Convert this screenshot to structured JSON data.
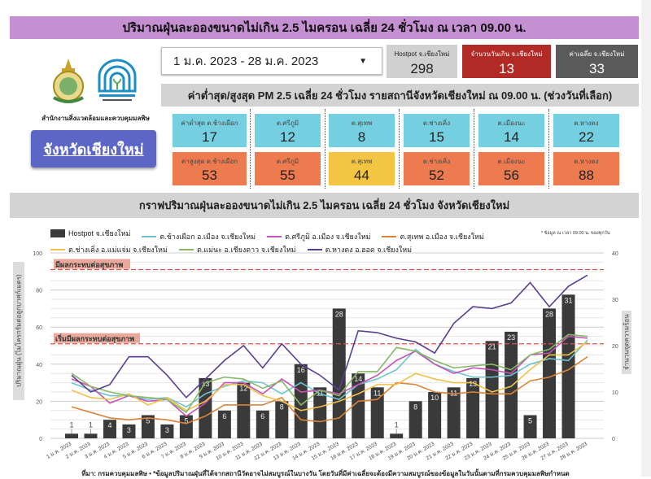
{
  "banner": {
    "title": "ปริมาณฝุ่นละอองขนาดไม่เกิน 2.5 ไมครอน เฉลี่ย 24 ชั่วโมง ณ เวลา 09.00 น."
  },
  "left": {
    "logos": [
      "provincial-seal-logo",
      "pollution-control-department-logo"
    ],
    "org": "สำนักงานสิ่งแวดล้อมและควบคุมมลพิษ",
    "province_button": "จังหวัดเชียงใหม่"
  },
  "date_range": {
    "value": "1 ม.ค. 2023 - 28 ม.ค. 2023",
    "icon": "caret-down-icon"
  },
  "stats": [
    {
      "label": "Hostpot จ.เชียงใหม่",
      "value": "298",
      "color": "#d0d0d0",
      "text": "#222"
    },
    {
      "label": "จำนวนวันเกิน จ.เชียงใหม่",
      "value": "13",
      "color": "#b22a25",
      "text": "#fff"
    },
    {
      "label": "ค่าเฉลี่ย จ.เชียงใหม่",
      "value": "33",
      "color": "#5a5a5a",
      "text": "#fff"
    }
  ],
  "stations_header": "ค่าต่ำสุด/สูงสุด PM 2.5 เฉลี่ย 24 ชั่วโมง รายสถานีจังหวัดเชียงใหม่ ณ 09.00 น. (ช่วงวันที่เลือก)",
  "min_cards": [
    {
      "label": "ค่าต่ำสุด ต.ช้างเผือก",
      "value": "17"
    },
    {
      "label": "ต.ศรีภูมิ",
      "value": "12"
    },
    {
      "label": "ต.สุเทพ",
      "value": "8"
    },
    {
      "label": "ต.ช่างเคิ่ง",
      "value": "15"
    },
    {
      "label": "ต.เมืองนะ",
      "value": "14"
    },
    {
      "label": "ต.หางดง",
      "value": "22"
    }
  ],
  "max_cards": [
    {
      "label": "ค่าสูงสุด ต.ช้างเผือก",
      "value": "53",
      "color": "#ee7b4f"
    },
    {
      "label": "ต.ศรีภูมิ",
      "value": "55",
      "color": "#ee7b4f"
    },
    {
      "label": "ต.สุเทพ",
      "value": "44",
      "color": "#f4c542"
    },
    {
      "label": "ต.ช่างเคิ่ง",
      "value": "52",
      "color": "#ee7b4f"
    },
    {
      "label": "ต.เมืองนะ",
      "value": "56",
      "color": "#ee7b4f"
    },
    {
      "label": "ต.หางดง",
      "value": "88",
      "color": "#ee7b4f"
    }
  ],
  "colors": {
    "min_card": "#74cfe0"
  },
  "chart_header": "กราฟปริมาณฝุ่นละอองขนาดไม่เกิน 2.5 ไมครอน เฉลี่ย 24 ชั่วโมง จังหวัดเชียงใหม่",
  "chart_note": "* ข้อมูล ณ เวลา 09.00 น. ของทุกวัน",
  "footer": "ที่มา: กรมควบคุมมลพิษ • *ข้อมูลปริมาณฝุ่นที่ได้จากสถานีวัดอาจไม่สมบูรณ์ในบางวัน โดยวันที่มีค่าเฉลี่ยจะต้องมีความสมบูรณ์ของข้อมูลในวันนั้นตามที่กรมควบคุมมลพิษกำหนด",
  "chart_data": {
    "type": "bar+line",
    "ylabel": "ปริมาณฝุ่น (ไมโครกรัมต่อลูกบาศก์เมตร)",
    "y2label": "จำนวนจุดความร้อน",
    "ylim": [
      0,
      100
    ],
    "y2lim": [
      0,
      40
    ],
    "yticks": [
      0,
      20,
      40,
      60,
      80,
      100
    ],
    "y2ticks": [
      0,
      10,
      20,
      30,
      40
    ],
    "grid": true,
    "legend": "top",
    "categories": [
      "1 ม.ค. 2023",
      "2 ม.ค. 2023",
      "3 ม.ค. 2023",
      "4 ม.ค. 2023",
      "5 ม.ค. 2023",
      "6 ม.ค. 2023",
      "7 ม.ค. 2023",
      "8 ม.ค. 2023",
      "9 ม.ค. 2023",
      "10 ม.ค. 2023",
      "11 ม.ค. 2023",
      "12 ม.ค. 2023",
      "13 ม.ค. 2023",
      "14 ม.ค. 2023",
      "15 ม.ค. 2023",
      "16 ม.ค. 2023",
      "17 ม.ค. 2023",
      "18 ม.ค. 2023",
      "19 ม.ค. 2023",
      "20 ม.ค. 2023",
      "21 ม.ค. 2023",
      "22 ม.ค. 2023",
      "23 ม.ค. 2023",
      "24 ม.ค. 2023",
      "25 ม.ค. 2023",
      "26 ม.ค. 2023",
      "27 ม.ค. 2023",
      "28 ม.ค. 2023"
    ],
    "thresholds": [
      {
        "label": "มีผลกระทบต่อสุขภาพ",
        "value": 91
      },
      {
        "label": "เริ่มมีผลกระทบต่อสุขภาพ",
        "value": 51
      }
    ],
    "bars": {
      "name": "Hostpot จ.เชียงใหม่",
      "color": "#3a3a3a",
      "axis": "right",
      "values": [
        1,
        1,
        4,
        3,
        5,
        3,
        5,
        13,
        6,
        12,
        6,
        8,
        16,
        11,
        28,
        14,
        11,
        1,
        8,
        10,
        11,
        13,
        21,
        23,
        5,
        28,
        31,
        null
      ]
    },
    "series": [
      {
        "name": "ต.ช้างเผือก อ.เมือง จ.เชียงใหม่",
        "color": "#6cc4d2",
        "values": [
          30,
          26,
          23,
          23,
          21,
          22,
          17,
          24,
          28,
          31,
          30,
          24,
          30,
          24,
          21,
          29,
          32,
          37,
          48,
          40,
          36,
          33,
          33,
          34,
          40,
          43,
          42,
          53
        ]
      },
      {
        "name": "ต.ศรีภูมิ อ.เมือง จ.เชียงใหม่",
        "color": "#c553b5",
        "values": [
          32,
          28,
          19,
          23,
          20,
          21,
          12,
          19,
          30,
          30,
          24,
          32,
          25,
          26,
          24,
          29,
          34,
          42,
          47,
          40,
          35,
          38,
          37,
          35,
          45,
          46,
          55,
          54
        ]
      },
      {
        "name": "ต.สุเทพ อ.เมือง จ.เชียงใหม่",
        "color": "#d98438",
        "values": [
          17,
          14,
          11,
          10,
          11,
          10,
          8,
          12,
          18,
          18,
          18,
          22,
          10,
          9,
          11,
          20,
          21,
          30,
          29,
          25,
          24,
          25,
          24,
          24,
          31,
          33,
          37,
          44
        ]
      },
      {
        "name": "ต.ช่างเคิ่ง อ.แม่แจ่ม จ.เชียงใหม่",
        "color": "#f0c14b",
        "values": [
          26,
          22,
          21,
          24,
          18,
          22,
          15,
          20,
          29,
          29,
          23,
          20,
          15,
          17,
          20,
          24,
          29,
          29,
          35,
          32,
          30,
          30,
          25,
          28,
          37,
          45,
          45,
          52
        ]
      },
      {
        "name": "ต.แม่นะ อ.เชียงดาว จ.เชียงใหม่",
        "color": "#86b865",
        "values": [
          35,
          28,
          25,
          23,
          22,
          21,
          14,
          30,
          33,
          32,
          27,
          31,
          18,
          26,
          23,
          36,
          36,
          49,
          47,
          42,
          38,
          39,
          40,
          37,
          45,
          48,
          56,
          55
        ]
      },
      {
        "name": "ต.หางดง อ.ฮอด จ.เชียงใหม่",
        "color": "#5b3f8f",
        "values": [
          34,
          25,
          29,
          44,
          44,
          34,
          22,
          32,
          42,
          50,
          38,
          51,
          40,
          34,
          26,
          58,
          57,
          54,
          52,
          46,
          62,
          71,
          70,
          73,
          84,
          71,
          82,
          88
        ]
      }
    ]
  }
}
